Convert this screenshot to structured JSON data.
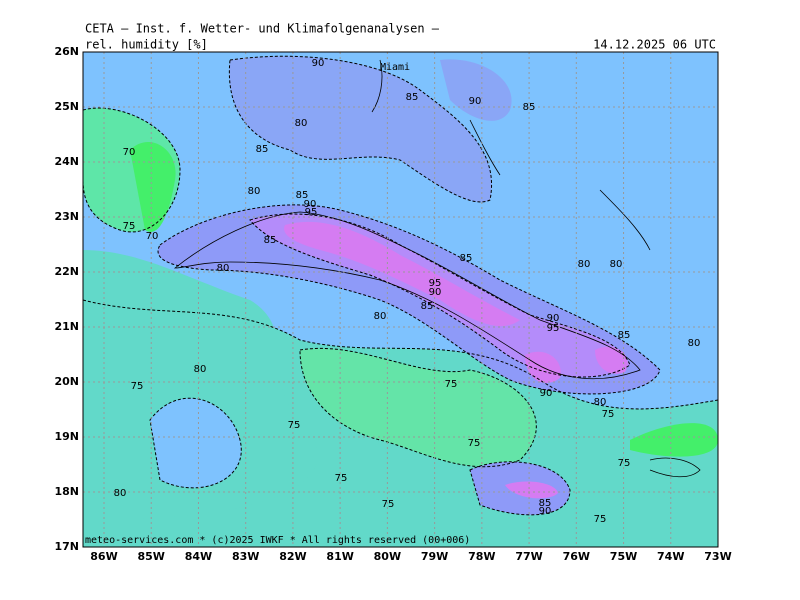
{
  "header": {
    "title": "CETA — Inst. f. Wetter- und Klimafolgenanalysen —",
    "field": "rel. humidity [%]",
    "valid": "14.12.2025 06 UTC"
  },
  "place": "Miami",
  "footer": "meteo-services.com * (c)2025 IWKF * All rights reserved (00+006)",
  "lat_labels": [
    "26N",
    "25N",
    "24N",
    "23N",
    "22N",
    "21N",
    "20N",
    "19N",
    "18N",
    "17N"
  ],
  "lon_labels": [
    "86W",
    "85W",
    "84W",
    "83W",
    "82W",
    "81W",
    "80W",
    "79W",
    "78W",
    "77W",
    "76W",
    "75W",
    "74W",
    "73W"
  ],
  "contour_labels": [
    90,
    85,
    90,
    85,
    80,
    85,
    70,
    80,
    85,
    90,
    95,
    75,
    70,
    85,
    85,
    80,
    80,
    80,
    95,
    90,
    85,
    80,
    90,
    95,
    85,
    80,
    80,
    75,
    75,
    90,
    80,
    75,
    75,
    75,
    75,
    75,
    80,
    75,
    85,
    90,
    75
  ]
}
